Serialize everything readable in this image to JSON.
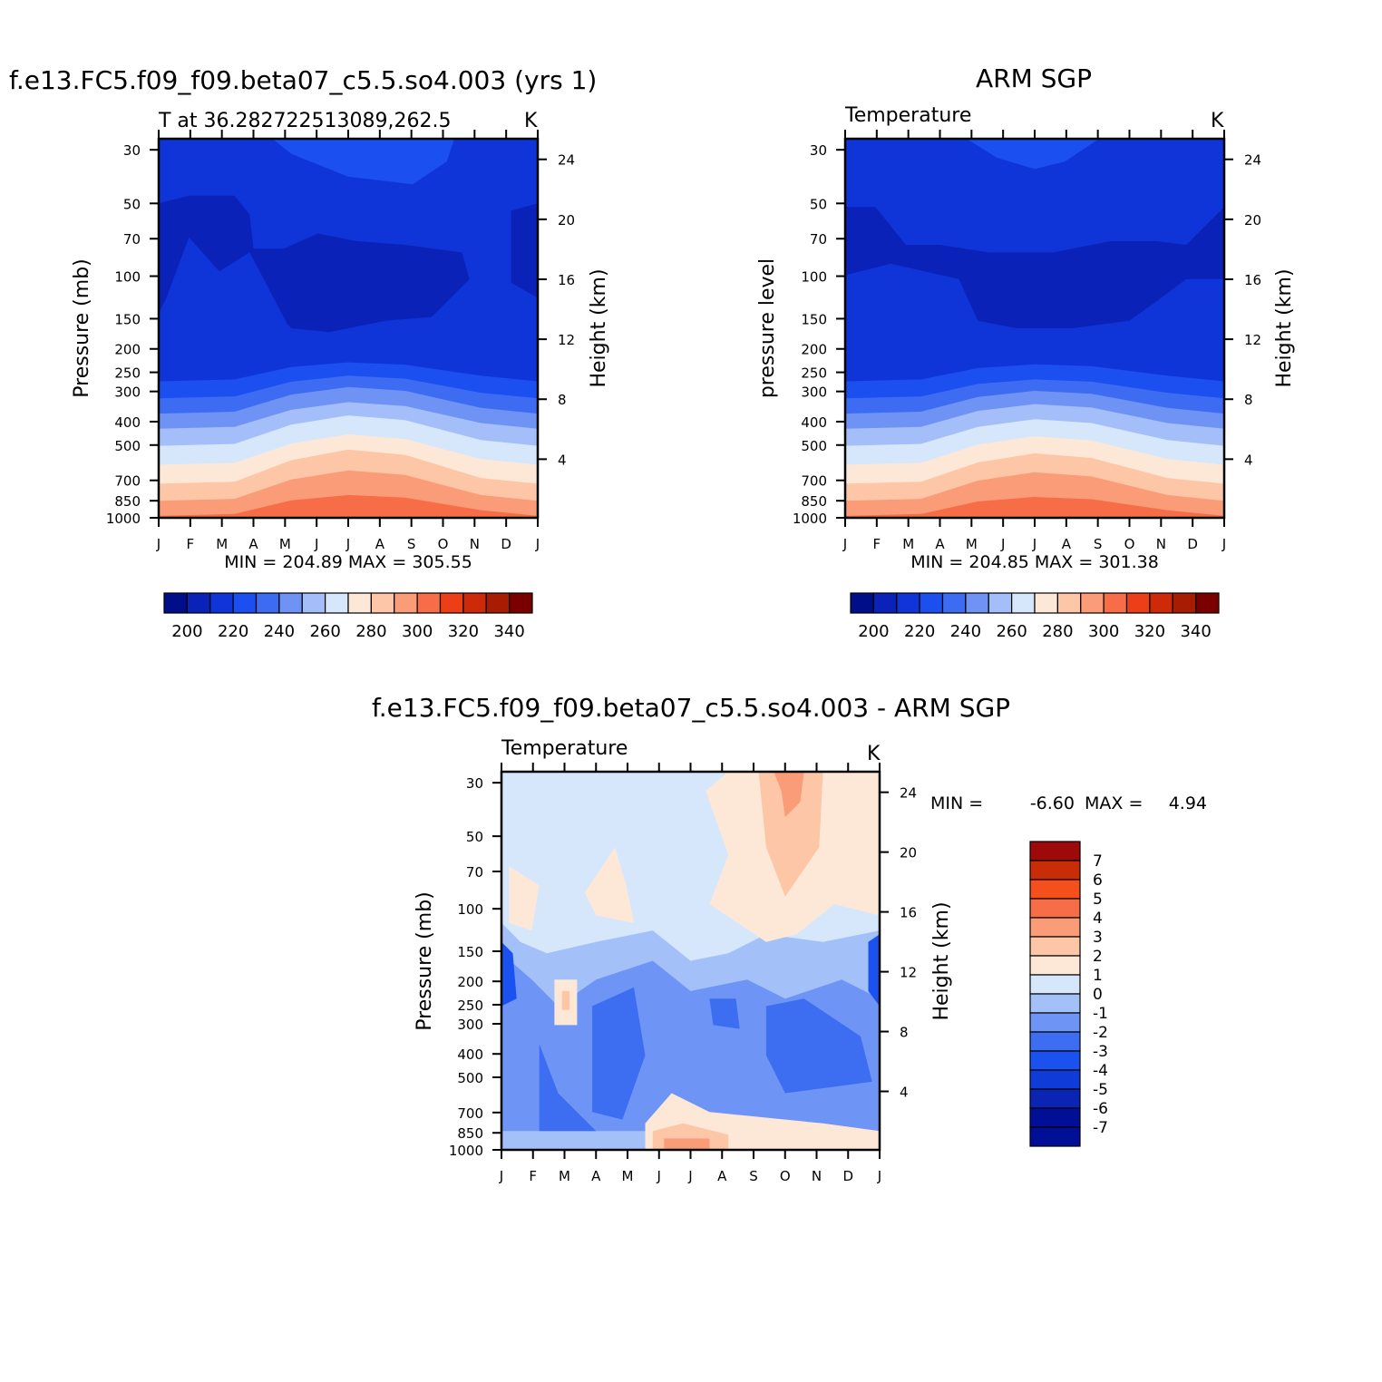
{
  "colors": {
    "temp_levels": [
      "#000e8a",
      "#0a22b8",
      "#0f35d8",
      "#1b4ff0",
      "#3d6cf3",
      "#6e93f5",
      "#a3bef8",
      "#d6e7fb",
      "#fde8d8",
      "#fcc6a7",
      "#fa9c78",
      "#f66d48",
      "#ec3f17",
      "#cc2a08",
      "#a81c04",
      "#7a0000"
    ],
    "diff_levels": [
      "#001096",
      "#0a24b4",
      "#0f3cd8",
      "#1b52ef",
      "#3d6ef2",
      "#6e95f5",
      "#a3c0f8",
      "#d6e7fb",
      "#fde8d8",
      "#fcc6a7",
      "#fa9c78",
      "#f66d48",
      "#f54f1b",
      "#c82d08",
      "#9e0a0a"
    ]
  },
  "chart_data": [
    {
      "type": "heatmap",
      "title": "f.e13.FC5.f09_f09.beta07_c5.5.so4.003 (yrs 1)",
      "subtitle": "T at 36.282722513089,262.5",
      "units": "K",
      "ylabel": "Pressure (mb)",
      "y2label": "Height (km)",
      "x": [
        "J",
        "F",
        "M",
        "A",
        "M",
        "J",
        "J",
        "A",
        "S",
        "O",
        "N",
        "D",
        "J"
      ],
      "y_ticks": [
        "30",
        "50",
        "70",
        "100",
        "150",
        "200",
        "250",
        "300",
        "400",
        "500",
        "700",
        "850",
        "1000"
      ],
      "y2_ticks": [
        "24",
        "20",
        "16",
        "12",
        "8",
        "4"
      ],
      "stats": "MIN = 204.89 MAX = 305.55",
      "colorbar_labels": [
        "200",
        "220",
        "240",
        "260",
        "280",
        "300",
        "320",
        "340"
      ],
      "levels": [
        195,
        200,
        205,
        210,
        215,
        220,
        225,
        230,
        235,
        240,
        245,
        250,
        255,
        260,
        265,
        270,
        275,
        280,
        285,
        290,
        295,
        300,
        305,
        310,
        315,
        320,
        325,
        330,
        335,
        340,
        345
      ]
    },
    {
      "type": "heatmap",
      "title": "ARM SGP",
      "subtitle": "Temperature",
      "units": "K",
      "ylabel": "pressure level",
      "y2label": "Height (km)",
      "x": [
        "J",
        "F",
        "M",
        "A",
        "M",
        "J",
        "J",
        "A",
        "S",
        "O",
        "N",
        "D",
        "J"
      ],
      "y_ticks": [
        "30",
        "50",
        "70",
        "100",
        "150",
        "200",
        "250",
        "300",
        "400",
        "500",
        "700",
        "850",
        "1000"
      ],
      "y2_ticks": [
        "24",
        "20",
        "16",
        "12",
        "8",
        "4"
      ],
      "stats": "MIN = 204.85 MAX = 301.38",
      "colorbar_labels": [
        "200",
        "220",
        "240",
        "260",
        "280",
        "300",
        "320",
        "340"
      ]
    },
    {
      "type": "heatmap",
      "title": "f.e13.FC5.f09_f09.beta07_c5.5.so4.003 - ARM SGP",
      "subtitle": "Temperature",
      "units": "K",
      "ylabel": "Pressure (mb)",
      "y2label": "Height (km)",
      "x": [
        "J",
        "F",
        "M",
        "A",
        "M",
        "J",
        "J",
        "A",
        "S",
        "O",
        "N",
        "D",
        "J"
      ],
      "y_ticks": [
        "30",
        "50",
        "70",
        "100",
        "150",
        "200",
        "250",
        "300",
        "400",
        "500",
        "700",
        "850",
        "1000"
      ],
      "y2_ticks": [
        "24",
        "20",
        "16",
        "12",
        "8",
        "4"
      ],
      "stats_min_label": "MIN =",
      "stats_min": "-6.60",
      "stats_max_label": "MAX =",
      "stats_max": "4.94",
      "colorbar_labels": [
        "7",
        "6",
        "5",
        "4",
        "3",
        "2",
        "1",
        "0",
        "-1",
        "-2",
        "-3",
        "-4",
        "-5",
        "-6",
        "-7"
      ]
    }
  ]
}
